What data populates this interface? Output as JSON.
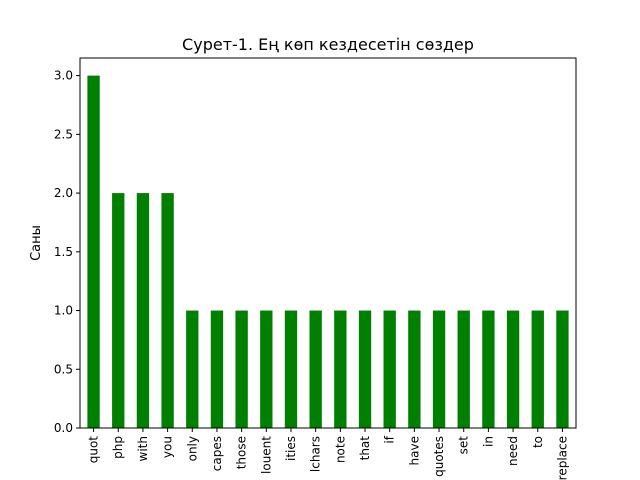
{
  "chart_data": {
    "type": "bar",
    "title": "Сурет-1. Ең көп кездесетін сөздер",
    "xlabel": "",
    "ylabel": "Саны",
    "categories": [
      "quot",
      "php",
      "with",
      "you",
      "only",
      "capes",
      "those",
      "louent",
      "ities",
      "lchars",
      "note",
      "that",
      "if",
      "have",
      "quotes",
      "set",
      "in",
      "need",
      "to",
      "replace"
    ],
    "values": [
      3,
      2,
      2,
      2,
      1,
      1,
      1,
      1,
      1,
      1,
      1,
      1,
      1,
      1,
      1,
      1,
      1,
      1,
      1,
      1
    ],
    "ylim": [
      0,
      3.15
    ],
    "yticks": [
      "0.0",
      "0.5",
      "1.0",
      "1.5",
      "2.0",
      "2.5",
      "3.0"
    ],
    "bar_color": "#008000",
    "grid": false,
    "legend": "none"
  }
}
